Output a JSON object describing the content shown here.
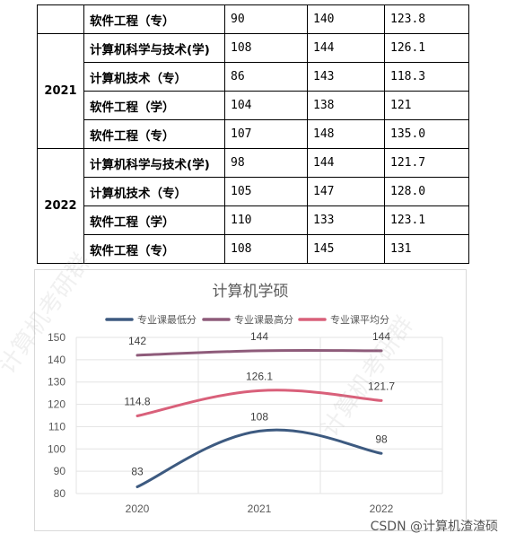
{
  "table": {
    "rows": [
      {
        "major": "软件工程（专）",
        "min": "90",
        "max": "140",
        "avg": "123.8"
      },
      {
        "major": "计算机科学与技术(学)",
        "min": "108",
        "max": "144",
        "avg": "126.1"
      },
      {
        "major": "计算机技术（专）",
        "min": "86",
        "max": "143",
        "avg": "118.3"
      },
      {
        "major": "软件工程（学）",
        "min": "104",
        "max": "138",
        "avg": "121"
      },
      {
        "major": "软件工程（专）",
        "min": "107",
        "max": "148",
        "avg": "135.0"
      },
      {
        "major": "计算机科学与技术(学)",
        "min": "98",
        "max": "144",
        "avg": "121.7"
      },
      {
        "major": "计算机技术（专）",
        "min": "105",
        "max": "147",
        "avg": "128.0"
      },
      {
        "major": "软件工程（学）",
        "min": "110",
        "max": "133",
        "avg": "123.1"
      },
      {
        "major": "软件工程（专）",
        "min": "108",
        "max": "145",
        "avg": "131"
      }
    ],
    "year_groups": [
      {
        "year": "",
        "start": 0,
        "span": 1
      },
      {
        "year": "2021",
        "start": 1,
        "span": 4
      },
      {
        "year": "2022",
        "start": 5,
        "span": 4
      }
    ]
  },
  "chart_data": {
    "type": "line",
    "title": "计算机学硕",
    "x": [
      "2020",
      "2021",
      "2022"
    ],
    "ylim": [
      80,
      150
    ],
    "yticks": [
      80,
      90,
      100,
      110,
      120,
      130,
      140,
      150
    ],
    "grid": true,
    "legend_position": "top",
    "series": [
      {
        "name": "专业课最低分",
        "values": [
          83,
          108,
          98
        ],
        "labels": [
          "83",
          "108",
          "98"
        ],
        "color": "#3d5a80"
      },
      {
        "name": "专业课最高分",
        "values": [
          142,
          144,
          144
        ],
        "labels": [
          "142",
          "144",
          "144"
        ],
        "color": "#8e5b7a"
      },
      {
        "name": "专业课平均分",
        "values": [
          114.8,
          126.1,
          121.7
        ],
        "labels": [
          "114.8",
          "126.1",
          "121.7"
        ],
        "color": "#d9607a"
      }
    ]
  },
  "watermark": "CSDN @计算机渣渣硕"
}
